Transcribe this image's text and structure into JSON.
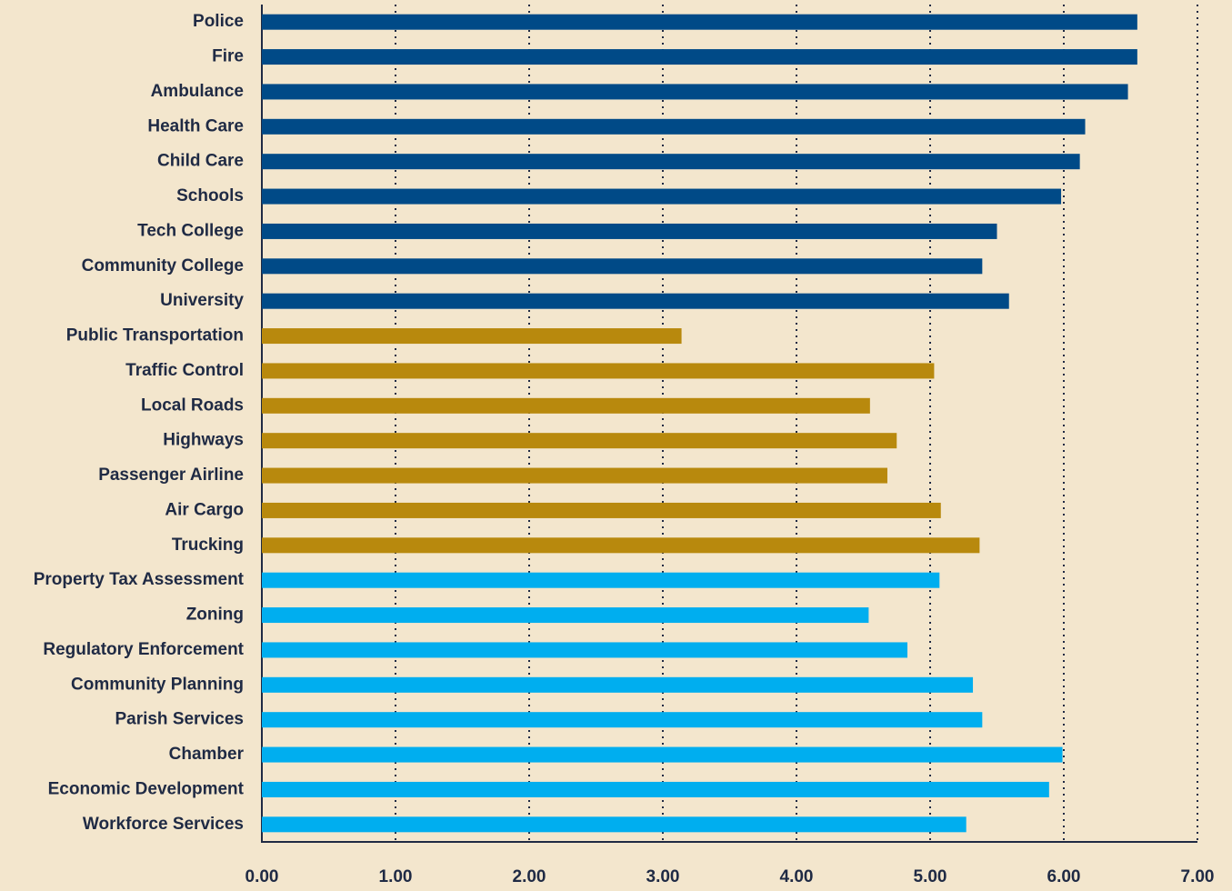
{
  "chart_data": {
    "type": "bar",
    "orientation": "horizontal",
    "categories": [
      "Police",
      "Fire",
      "Ambulance",
      "Health Care",
      "Child Care",
      "Schools",
      "Tech College",
      "Community College",
      "University",
      "Public Transportation",
      "Traffic Control",
      "Local Roads",
      "Highways",
      "Passenger Airline",
      "Air Cargo",
      "Trucking",
      "Property Tax Assessment",
      "Zoning",
      "Regulatory Enforcement",
      "Community Planning",
      "Parish Services",
      "Chamber",
      "Economic Development",
      "Workforce Services"
    ],
    "values": [
      6.55,
      6.55,
      6.48,
      6.16,
      6.12,
      5.98,
      5.5,
      5.39,
      5.59,
      3.14,
      5.03,
      4.55,
      4.75,
      4.68,
      5.08,
      5.37,
      5.07,
      4.54,
      4.83,
      5.32,
      5.39,
      5.99,
      5.89,
      5.27
    ],
    "colors": [
      "#004a87",
      "#004a87",
      "#004a87",
      "#004a87",
      "#004a87",
      "#004a87",
      "#004a87",
      "#004a87",
      "#004a87",
      "#b8890d",
      "#b8890d",
      "#b8890d",
      "#b8890d",
      "#b8890d",
      "#b8890d",
      "#b8890d",
      "#00aeef",
      "#00aeef",
      "#00aeef",
      "#00aeef",
      "#00aeef",
      "#00aeef",
      "#00aeef",
      "#00aeef"
    ],
    "xlim": [
      0,
      7
    ],
    "xticks": [
      {
        "value": 0,
        "label": "0.00"
      },
      {
        "value": 1,
        "label": "1.00"
      },
      {
        "value": 2,
        "label": "2.00"
      },
      {
        "value": 3,
        "label": "3.00"
      },
      {
        "value": 4,
        "label": "4.00"
      },
      {
        "value": 5,
        "label": "5.00"
      },
      {
        "value": 6,
        "label": "6.00"
      },
      {
        "value": 7,
        "label": "7.00"
      }
    ],
    "grid": true
  }
}
